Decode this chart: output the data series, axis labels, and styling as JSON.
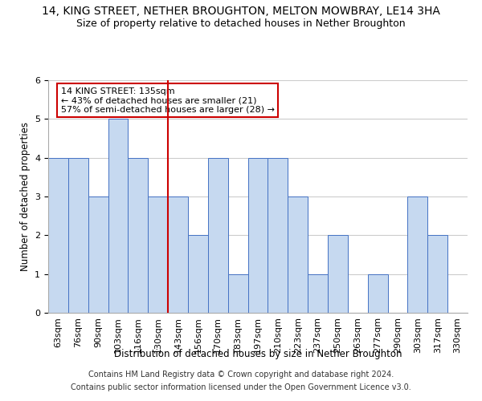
{
  "title": "14, KING STREET, NETHER BROUGHTON, MELTON MOWBRAY, LE14 3HA",
  "subtitle": "Size of property relative to detached houses in Nether Broughton",
  "xlabel": "Distribution of detached houses by size in Nether Broughton",
  "ylabel": "Number of detached properties",
  "footer_line1": "Contains HM Land Registry data © Crown copyright and database right 2024.",
  "footer_line2": "Contains public sector information licensed under the Open Government Licence v3.0.",
  "annotation_line1": "14 KING STREET: 135sqm",
  "annotation_line2": "← 43% of detached houses are smaller (21)",
  "annotation_line3": "57% of semi-detached houses are larger (28) →",
  "categories": [
    "63sqm",
    "76sqm",
    "90sqm",
    "103sqm",
    "116sqm",
    "130sqm",
    "143sqm",
    "156sqm",
    "170sqm",
    "183sqm",
    "197sqm",
    "210sqm",
    "223sqm",
    "237sqm",
    "250sqm",
    "263sqm",
    "277sqm",
    "290sqm",
    "303sqm",
    "317sqm",
    "330sqm"
  ],
  "values": [
    4,
    4,
    3,
    5,
    4,
    3,
    3,
    2,
    4,
    1,
    4,
    4,
    3,
    1,
    2,
    0,
    1,
    0,
    3,
    2,
    0
  ],
  "bar_color": "#c6d9f0",
  "bar_edge_color": "#4472c4",
  "vline_x": 6.0,
  "vline_color": "#cc0000",
  "annotation_box_edge_color": "#cc0000",
  "annotation_box_face_color": "#ffffff",
  "ylim": [
    0,
    6
  ],
  "yticks": [
    0,
    1,
    2,
    3,
    4,
    5,
    6
  ],
  "grid_color": "#cccccc",
  "bg_color": "#ffffff",
  "title_fontsize": 10,
  "subtitle_fontsize": 9,
  "axis_label_fontsize": 8.5,
  "tick_fontsize": 8,
  "annotation_fontsize": 8,
  "footer_fontsize": 7
}
